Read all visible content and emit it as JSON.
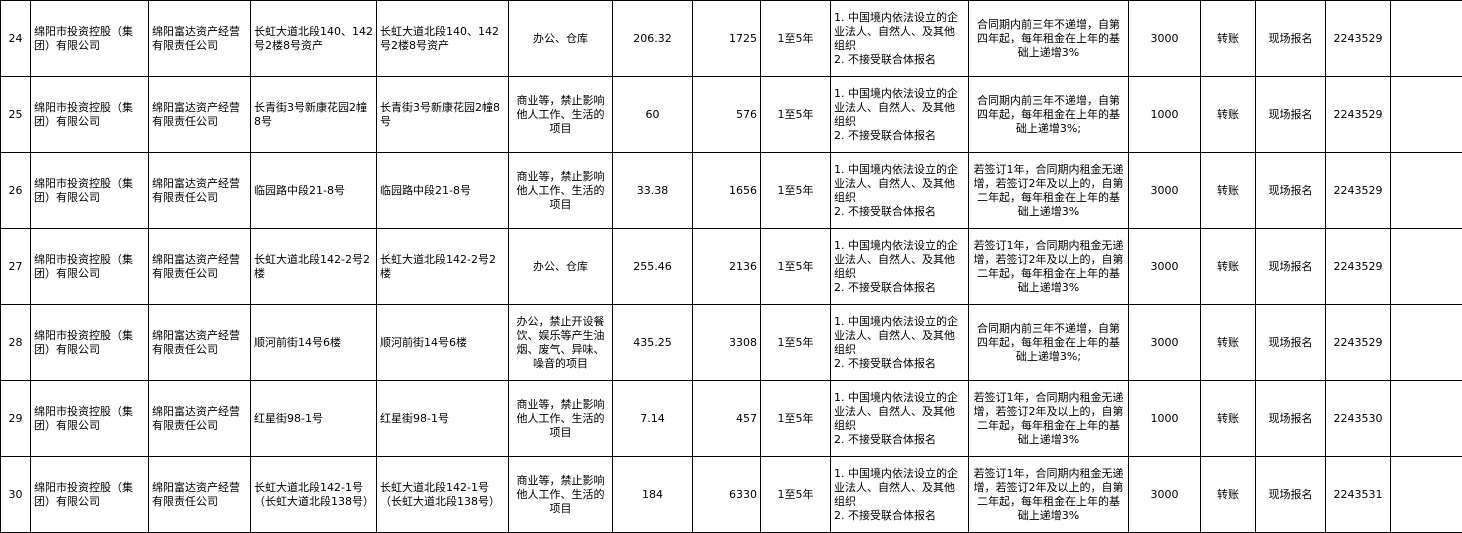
{
  "table": {
    "rows": [
      [
        24,
        "绵阳市投资控股（集团）有限公司",
        "绵阳富达资产经营有限责任公司",
        "长虹大道北段140、142号2楼8号资产",
        "长虹大道北段140、142号2楼8号资产",
        "办公、仓库",
        206.32,
        1725,
        "1至5年",
        [
          "1. 中国境内依法设立的企业法人、自然人、及其他组织",
          "2. 不接受联合体报名"
        ],
        "合同期内前三年不递增，自第四年起，每年租金在上年的基础上递增3%",
        3000,
        "转账",
        "现场报名",
        2243529
      ],
      [
        25,
        "绵阳市投资控股（集团）有限公司",
        "绵阳富达资产经营有限责任公司",
        "长青街3号新康花园2幢8号",
        "长青街3号新康花园2幢8号",
        "商业等，禁止影响他人工作、生活的项目",
        60,
        576,
        "1至5年",
        [
          "1. 中国境内依法设立的企业法人、自然人、及其他组织",
          "2. 不接受联合体报名"
        ],
        "合同期内前三年不递增，自第四年起，每年租金在上年的基础上递增3%;",
        1000,
        "转账",
        "现场报名",
        2243529
      ],
      [
        26,
        "绵阳市投资控股（集团）有限公司",
        "绵阳富达资产经营有限责任公司",
        "临园路中段21-8号",
        "临园路中段21-8号",
        "商业等，禁止影响他人工作、生活的项目",
        33.38,
        1656,
        "1至5年",
        [
          "1. 中国境内依法设立的企业法人、自然人、及其他组织",
          "2. 不接受联合体报名"
        ],
        "若签订1年，合同期内租金无递增，若签订2年及以上的，自第二年起，每年租金在上年的基础上递增3%",
        3000,
        "转账",
        "现场报名",
        2243529
      ],
      [
        27,
        "绵阳市投资控股（集团）有限公司",
        "绵阳富达资产经营有限责任公司",
        "长虹大道北段142-2号2楼",
        "长虹大道北段142-2号2楼",
        "办公、仓库",
        255.46,
        2136,
        "1至5年",
        [
          "1. 中国境内依法设立的企业法人、自然人、及其他组织",
          "2. 不接受联合体报名"
        ],
        "若签订1年，合同期内租金无递增，若签订2年及以上的，自第二年起，每年租金在上年的基础上递增3%",
        3000,
        "转账",
        "现场报名",
        2243529
      ],
      [
        28,
        "绵阳市投资控股（集团）有限公司",
        "绵阳富达资产经营有限责任公司",
        "顺河前街14号6楼",
        "顺河前街14号6楼",
        "办公，禁止开设餐饮、娱乐等产生油烟、废气、异味、噪音的项目",
        435.25,
        3308,
        "1至5年",
        [
          "1. 中国境内依法设立的企业法人、自然人、及其他组织",
          "2. 不接受联合体报名"
        ],
        "合同期内前三年不递增，自第四年起，每年租金在上年的基础上递增3%;",
        3000,
        "转账",
        "现场报名",
        2243529
      ],
      [
        29,
        "绵阳市投资控股（集团）有限公司",
        "绵阳富达资产经营有限责任公司",
        "红星街98-1号",
        "红星街98-1号",
        "商业等，禁止影响他人工作、生活的项目",
        7.14,
        457,
        "1至5年",
        [
          "1. 中国境内依法设立的企业法人、自然人、及其他组织",
          "2. 不接受联合体报名"
        ],
        "若签订1年，合同期内租金无递增，若签订2年及以上的，自第二年起，每年租金在上年的基础上递增3%",
        1000,
        "转账",
        "现场报名",
        2243530
      ],
      [
        30,
        "绵阳市投资控股（集团）有限公司",
        "绵阳富达资产经营有限责任公司",
        "长虹大道北段142-1号（长虹大道北段138号）",
        "长虹大道北段142-1号（长虹大道北段138号）",
        "商业等，禁止影响他人工作、生活的项目",
        184,
        6330,
        "1至5年",
        [
          "1. 中国境内依法设立的企业法人、自然人、及其他组织",
          "2. 不接受联合体报名"
        ],
        "若签订1年，合同期内租金无递增，若签订2年及以上的，自第二年起，每年租金在上年的基础上递增3%",
        3000,
        "转账",
        "现场报名",
        2243531
      ]
    ]
  }
}
